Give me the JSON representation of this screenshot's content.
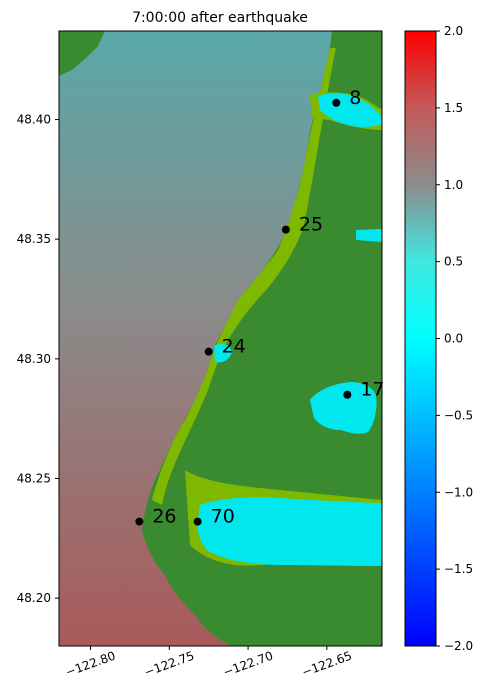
{
  "chart_data": {
    "type": "heatmap",
    "title": "7:00:00 after earthquake",
    "xlabel": "",
    "ylabel": "",
    "xlim": [
      -122.82,
      -122.615
    ],
    "ylim": [
      48.18,
      48.437
    ],
    "x_ticks": [
      {
        "value": -122.8,
        "label": "−122.80"
      },
      {
        "value": -122.75,
        "label": "−122.75"
      },
      {
        "value": -122.7,
        "label": "−122.70"
      },
      {
        "value": -122.65,
        "label": "−122.65"
      }
    ],
    "y_ticks": [
      {
        "value": 48.2,
        "label": "48.20"
      },
      {
        "value": 48.25,
        "label": "48.25"
      },
      {
        "value": 48.3,
        "label": "48.30"
      },
      {
        "value": 48.35,
        "label": "48.35"
      },
      {
        "value": 48.4,
        "label": "48.40"
      }
    ],
    "gauges": [
      {
        "id": "8",
        "label": "8",
        "lon": -122.644,
        "lat": 48.407
      },
      {
        "id": "25",
        "label": "25",
        "lon": -122.676,
        "lat": 48.354
      },
      {
        "id": "24",
        "label": "24",
        "lon": -122.725,
        "lat": 48.303
      },
      {
        "id": "17",
        "label": "17",
        "lon": -122.637,
        "lat": 48.285
      },
      {
        "id": "26",
        "label": "26",
        "lon": -122.769,
        "lat": 48.232
      },
      {
        "id": "70",
        "label": "70",
        "lon": -122.732,
        "lat": 48.232
      }
    ],
    "colorbar": {
      "vmin": -2.0,
      "vmax": 2.0,
      "ticks": [
        {
          "value": 2.0,
          "label": "2.0"
        },
        {
          "value": 1.5,
          "label": "1.5"
        },
        {
          "value": 1.0,
          "label": "1.0"
        },
        {
          "value": 0.5,
          "label": "0.5"
        },
        {
          "value": 0.0,
          "label": "0.0"
        },
        {
          "value": -0.5,
          "label": "−0.5"
        },
        {
          "value": -1.0,
          "label": "−1.0"
        },
        {
          "value": -1.5,
          "label": "−1.5"
        },
        {
          "value": -2.0,
          "label": "−2.0"
        }
      ],
      "color_stops": [
        {
          "value": -2.0,
          "color": "#0000ff"
        },
        {
          "value": -0.5,
          "color": "#00bfff"
        },
        {
          "value": 0.0,
          "color": "#00ffff"
        },
        {
          "value": 0.5,
          "color": "#40e8e0"
        },
        {
          "value": 1.0,
          "color": "#8c8c8c"
        },
        {
          "value": 1.5,
          "color": "#c45a5a"
        },
        {
          "value": 2.0,
          "color": "#ff0000"
        }
      ]
    },
    "colors": {
      "land": "#3a8a30",
      "inundated": "#7fb800",
      "water_north": "#5aa8a8",
      "water_south": "#a85a5a",
      "bay_water": "#00e8ee",
      "gauge_marker": "#000000"
    }
  }
}
